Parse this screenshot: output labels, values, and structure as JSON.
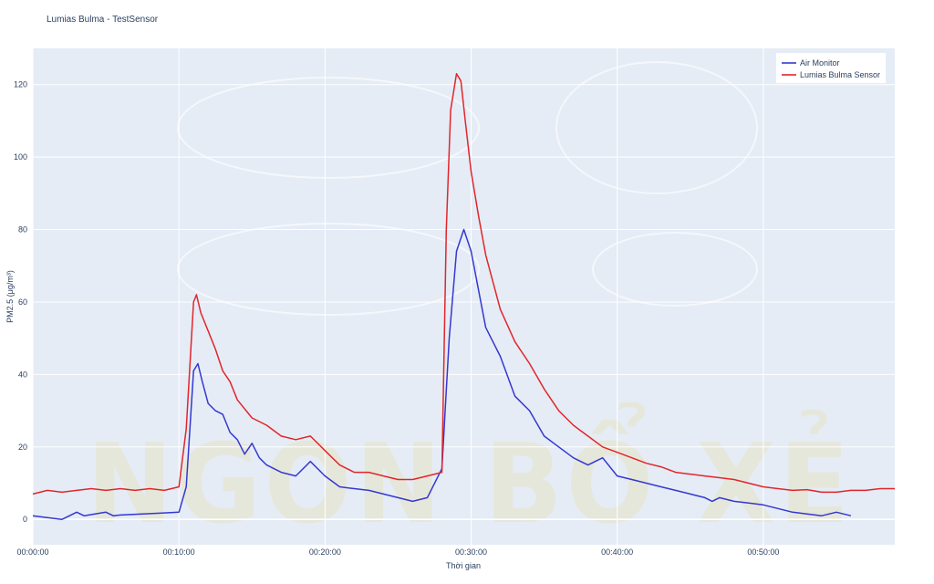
{
  "chart_data": {
    "type": "line",
    "title": "Lumias Bulma - TestSensor",
    "xlabel": "Thời gian",
    "ylabel": "PM2.5 (μg/m³)",
    "xlim": [
      0,
      59
    ],
    "ylim": [
      -7,
      130
    ],
    "x_ticks": [
      0,
      10,
      20,
      30,
      40,
      50
    ],
    "x_tick_labels": [
      "00:00:00",
      "00:10:00",
      "00:20:00",
      "00:30:00",
      "00:40:00",
      "00:50:00"
    ],
    "y_ticks": [
      0,
      20,
      40,
      60,
      80,
      100,
      120
    ],
    "y_tick_labels": [
      "0",
      "20",
      "40",
      "60",
      "80",
      "100",
      "120"
    ],
    "grid": true,
    "legend_position": "top-right",
    "series": [
      {
        "name": "Air Monitor",
        "color": "#3538cf",
        "x": [
          0,
          1,
          2,
          3,
          3.5,
          5,
          5.5,
          6,
          7,
          8,
          9,
          10,
          10.5,
          11,
          11.3,
          11.6,
          12,
          12.5,
          13,
          13.5,
          14,
          14.5,
          15,
          15.5,
          16,
          17,
          18,
          19,
          20,
          21,
          22,
          23,
          24,
          25,
          26,
          27,
          28,
          28.5,
          29,
          29.5,
          30,
          31,
          32,
          33,
          34,
          35,
          36,
          37,
          38,
          39,
          40,
          41,
          42,
          43,
          44,
          45,
          46,
          46.5,
          47,
          48,
          49,
          50,
          51,
          52,
          53,
          54,
          55,
          56
        ],
        "y": [
          1,
          0.5,
          0,
          2,
          1,
          2,
          1,
          1.2,
          1.4,
          1.6,
          1.8,
          2,
          9,
          41,
          43,
          38,
          32,
          30,
          29,
          24,
          22,
          18,
          21,
          17,
          15,
          13,
          12,
          16,
          12,
          9,
          8.5,
          8,
          7,
          6,
          5,
          6,
          14,
          50,
          74,
          80,
          74,
          53,
          45,
          34,
          30,
          23,
          20,
          17,
          15,
          17,
          12,
          11,
          10,
          9,
          8,
          7,
          6,
          5,
          6,
          5,
          4.5,
          4,
          3,
          2,
          1.5,
          1,
          2,
          1
        ]
      },
      {
        "name": "Lumias Bulma Sensor",
        "color": "#e1262a",
        "x": [
          0,
          1,
          2,
          3,
          4,
          5,
          6,
          7,
          8,
          9,
          10,
          10.5,
          11,
          11.2,
          11.5,
          12,
          12.5,
          13,
          13.5,
          14,
          15,
          15.5,
          16,
          17,
          18,
          19,
          20,
          21,
          22,
          23,
          24,
          25,
          26,
          27,
          28,
          28.3,
          28.6,
          29,
          29.3,
          29.6,
          30,
          30.5,
          31,
          32,
          33,
          34,
          35,
          36,
          37,
          38,
          39,
          40,
          41,
          42,
          43,
          44,
          45,
          46,
          47,
          48,
          49,
          50,
          51,
          52,
          53,
          54,
          55,
          56,
          57,
          58,
          59
        ],
        "y": [
          7,
          8,
          7.5,
          8,
          8.5,
          8,
          8.5,
          8,
          8.5,
          8,
          9,
          25,
          60,
          62,
          57,
          52,
          47,
          41,
          38,
          33,
          28,
          27,
          26,
          23,
          22,
          23,
          19,
          15,
          13,
          13,
          12,
          11,
          11,
          12,
          13,
          80,
          113,
          123,
          121,
          110,
          96,
          84,
          73,
          58,
          49,
          43,
          36,
          30,
          26,
          23,
          20,
          18.5,
          17,
          15.5,
          14.5,
          13,
          12.5,
          12,
          11.5,
          11,
          10,
          9,
          8.5,
          8,
          8.2,
          7.5,
          7.5,
          8,
          8,
          8.5,
          8.5
        ]
      }
    ]
  },
  "watermark": {
    "text": "NGON BỔ XẺ"
  }
}
